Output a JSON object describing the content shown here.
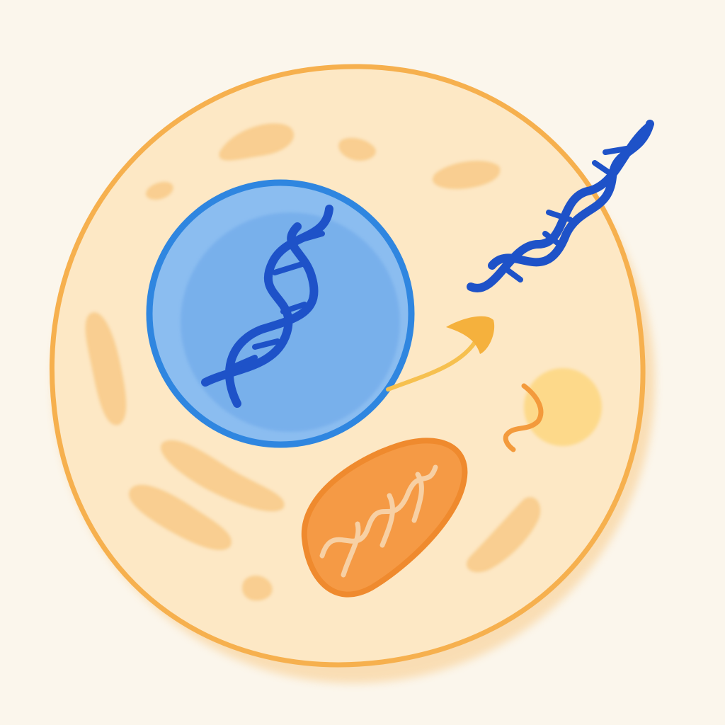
{
  "colors": {
    "background": "#fbf6ec",
    "cytoplasm": "#fde8c5",
    "cell_outline": "#f6b04e",
    "organelle_fill": "#f7c67f",
    "nucleus_fill": "#8bbdf0",
    "nucleus_inner": "#6aa6e8",
    "nucleus_outline": "#2f86e0",
    "dna_strand": "#1e52c8",
    "mitochondrion_fill": "#f59a45",
    "mitochondrion_outline": "#ef8a2e",
    "mitochondrion_cristae": "#f7d0a4",
    "vesicle_fill": "#fdd98a",
    "arrow": "#f6c04f",
    "arrow_head": "#f5b13d",
    "rna_strand": "#f39a3c"
  },
  "elements": {
    "cell": "cell-membrane",
    "nucleus": "nucleus",
    "dna_in_nucleus": "dna-double-helix",
    "dna_outside": "dna-double-helix",
    "transport_arrow": "curved-arrow",
    "mitochondrion": "mitochondrion",
    "vesicle": "vesicle",
    "rna": "rna-strand"
  }
}
